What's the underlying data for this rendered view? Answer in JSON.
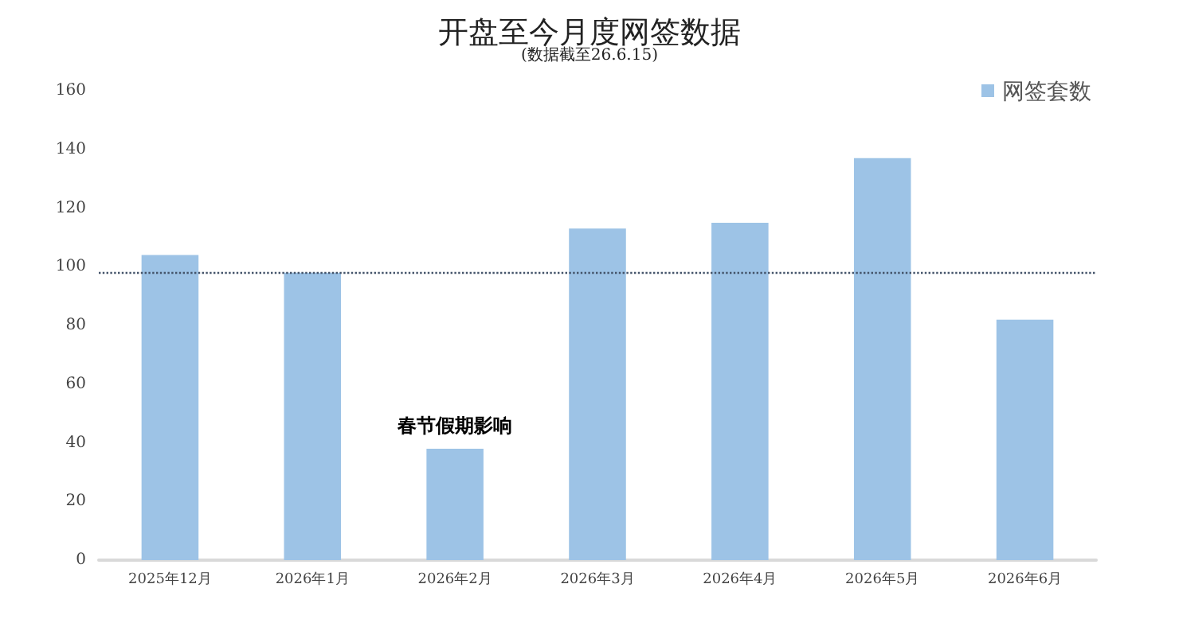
{
  "chart_data": {
    "type": "bar",
    "title": "开盘至今月度网签数据",
    "subtitle": "(数据截至26.6.15)",
    "categories": [
      "2025年12月",
      "2026年1月",
      "2026年2月",
      "2026年3月",
      "2026年4月",
      "2026年5月",
      "2026年6月"
    ],
    "series": [
      {
        "name": "网签套数",
        "color": "#9dc3e6",
        "values": [
          104,
          98,
          38,
          113,
          115,
          137,
          82
        ]
      }
    ],
    "ylim": [
      0,
      160
    ],
    "yticks": [
      0,
      20,
      40,
      60,
      80,
      100,
      120,
      140,
      160
    ],
    "grid": false,
    "legend": "top right",
    "ref_lines": [
      {
        "axis": "y",
        "value": 98,
        "color": "#44546a",
        "line_style": "dotted"
      }
    ],
    "annotations": [
      {
        "text": "春节假期影响",
        "x": "2026年2月",
        "y": 38
      }
    ]
  }
}
